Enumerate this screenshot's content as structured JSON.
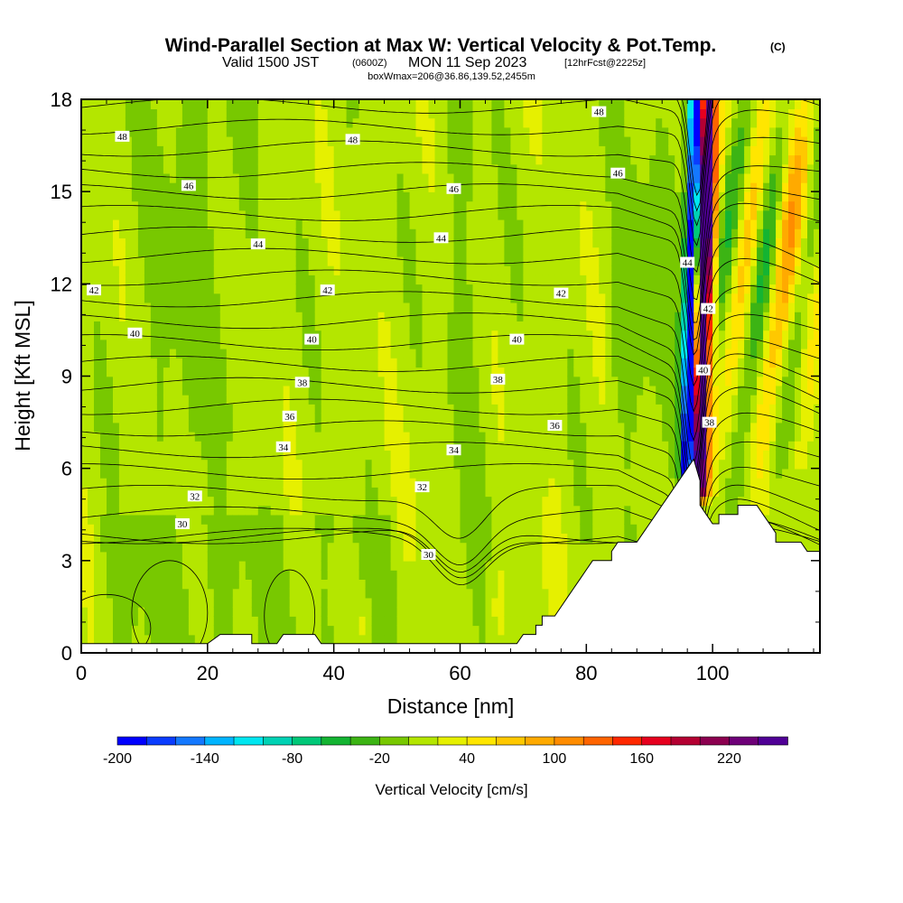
{
  "title": {
    "main": "Wind-Parallel Section at Max W: Vertical Velocity & Pot.Temp.",
    "copyright": "(C)",
    "valid_prefix": "Valid 1500 JST",
    "utc": "(0600Z)",
    "valid_date": "MON 11 Sep 2023",
    "forecast": "[12hrFcst@2225z]",
    "boxinfo": "boxWmax=206@36.86,139.52,2455m"
  },
  "chart_data": {
    "type": "heatmap",
    "xlabel": "Distance [nm]",
    "ylabel": "Height [Kft MSL]",
    "xlim": [
      0,
      117
    ],
    "ylim": [
      0,
      18
    ],
    "x_ticks": [
      "0",
      "20",
      "40",
      "60",
      "80",
      "100"
    ],
    "x_tick_values": [
      0,
      20,
      40,
      60,
      80,
      100
    ],
    "y_ticks": [
      "0",
      "3",
      "6",
      "9",
      "12",
      "15",
      "18"
    ],
    "y_tick_values": [
      0,
      3,
      6,
      9,
      12,
      15,
      18
    ],
    "colorbar": {
      "label": "Vertical Velocity [cm/s]",
      "range": [
        -200,
        260
      ],
      "tick_labels": [
        "-200",
        "-140",
        "-80",
        "-20",
        "40",
        "100",
        "160",
        "220"
      ],
      "tick_values": [
        -200,
        -140,
        -80,
        -20,
        40,
        100,
        160,
        220
      ],
      "colors": [
        "#0000ff",
        "#0a3cff",
        "#1478ff",
        "#00b4ff",
        "#00e6f0",
        "#00d2b4",
        "#00c878",
        "#14b432",
        "#3cb414",
        "#78c800",
        "#b4e600",
        "#e6f000",
        "#ffe600",
        "#ffc800",
        "#ffaa00",
        "#ff8c00",
        "#ff6400",
        "#ff2800",
        "#e6001e",
        "#b40032",
        "#8c0050",
        "#6e0078",
        "#500096"
      ]
    },
    "terrain": [
      [
        0,
        0.3
      ],
      [
        20,
        0.3
      ],
      [
        22,
        0.6
      ],
      [
        27,
        0.6
      ],
      [
        27,
        0.3
      ],
      [
        31,
        0.3
      ],
      [
        32,
        0.6
      ],
      [
        37,
        0.6
      ],
      [
        38,
        0.3
      ],
      [
        69,
        0.3
      ],
      [
        70,
        0.6
      ],
      [
        72,
        0.6
      ],
      [
        72,
        0.9
      ],
      [
        73,
        0.9
      ],
      [
        73,
        1.2
      ],
      [
        75,
        1.2
      ],
      [
        76,
        1.5
      ],
      [
        77,
        1.8
      ],
      [
        78,
        2.1
      ],
      [
        79,
        2.4
      ],
      [
        80,
        2.7
      ],
      [
        81,
        3.0
      ],
      [
        84,
        3.0
      ],
      [
        84,
        3.3
      ],
      [
        85,
        3.6
      ],
      [
        88,
        3.6
      ],
      [
        89,
        3.9
      ],
      [
        90,
        4.2
      ],
      [
        91,
        4.5
      ],
      [
        92,
        4.8
      ],
      [
        93,
        5.1
      ],
      [
        94,
        5.4
      ],
      [
        95,
        5.7
      ],
      [
        96,
        6.0
      ],
      [
        97,
        6.3
      ],
      [
        98,
        5.6
      ],
      [
        98,
        4.8
      ],
      [
        99,
        4.5
      ],
      [
        100,
        4.2
      ],
      [
        101,
        4.2
      ],
      [
        101,
        4.5
      ],
      [
        104,
        4.5
      ],
      [
        104,
        4.8
      ],
      [
        107,
        4.8
      ],
      [
        108,
        4.5
      ],
      [
        109,
        4.2
      ],
      [
        110,
        3.9
      ],
      [
        110,
        3.6
      ],
      [
        114,
        3.6
      ],
      [
        115,
        3.3
      ],
      [
        117,
        3.3
      ]
    ],
    "theta_contours": [
      {
        "level": 30,
        "label_pos": [
          16,
          4.2
        ]
      },
      {
        "level": 32,
        "label_pos": [
          18.5,
          5.1
        ]
      },
      {
        "level": 34,
        "label_pos": [
          32,
          6.6
        ]
      },
      {
        "level": 36,
        "label_pos": [
          33,
          7.5
        ]
      },
      {
        "level": 38,
        "label_pos": [
          35,
          8.7
        ]
      },
      {
        "level": 40,
        "label_pos": [
          37,
          10.0
        ]
      },
      {
        "level": 42,
        "label_pos": [
          39,
          11.7
        ]
      },
      {
        "level": 44,
        "label_pos": [
          28,
          13.3
        ]
      },
      {
        "level": 46,
        "label_pos": [
          17,
          15.2
        ]
      },
      {
        "level": 48,
        "label_pos": [
          43,
          16.7
        ]
      }
    ],
    "contour_labels": [
      {
        "text": "48",
        "x": 6.5,
        "y": 16.8
      },
      {
        "text": "48",
        "x": 43,
        "y": 16.7
      },
      {
        "text": "48",
        "x": 82,
        "y": 17.6
      },
      {
        "text": "46",
        "x": 17,
        "y": 15.2
      },
      {
        "text": "46",
        "x": 59,
        "y": 15.1
      },
      {
        "text": "46",
        "x": 85,
        "y": 15.6
      },
      {
        "text": "44",
        "x": 28,
        "y": 13.3
      },
      {
        "text": "44",
        "x": 57,
        "y": 13.5
      },
      {
        "text": "44",
        "x": 96,
        "y": 12.7
      },
      {
        "text": "42",
        "x": 2,
        "y": 11.8
      },
      {
        "text": "42",
        "x": 39,
        "y": 11.8
      },
      {
        "text": "42",
        "x": 76,
        "y": 11.7
      },
      {
        "text": "42",
        "x": 99.3,
        "y": 11.2
      },
      {
        "text": "40",
        "x": 8.5,
        "y": 10.4
      },
      {
        "text": "40",
        "x": 36.5,
        "y": 10.2
      },
      {
        "text": "40",
        "x": 69,
        "y": 10.2
      },
      {
        "text": "40",
        "x": 98.5,
        "y": 9.2
      },
      {
        "text": "38",
        "x": 35,
        "y": 8.8
      },
      {
        "text": "38",
        "x": 66,
        "y": 8.9
      },
      {
        "text": "38",
        "x": 99.5,
        "y": 7.5
      },
      {
        "text": "36",
        "x": 33,
        "y": 7.7
      },
      {
        "text": "36",
        "x": 75,
        "y": 7.4
      },
      {
        "text": "34",
        "x": 32,
        "y": 6.7
      },
      {
        "text": "34",
        "x": 59,
        "y": 6.6
      },
      {
        "text": "32",
        "x": 18,
        "y": 5.1
      },
      {
        "text": "32",
        "x": 54,
        "y": 5.4
      },
      {
        "text": "30",
        "x": 16,
        "y": 4.2
      },
      {
        "text": "30",
        "x": 55,
        "y": 3.2
      }
    ]
  }
}
